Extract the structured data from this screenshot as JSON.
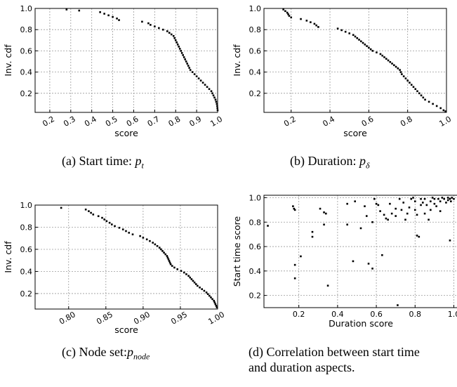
{
  "captions": {
    "a": {
      "prefix": "(a) Start time: ",
      "math": "p",
      "sub": "t"
    },
    "b": {
      "prefix": "(b) Duration: ",
      "math": "p",
      "sub": "δ"
    },
    "c": {
      "prefix": "(c) Node set:",
      "math": "p",
      "sub": "node"
    },
    "d": {
      "line1": "(d) Correlation between start time",
      "line2": "and duration aspects."
    }
  },
  "chart_data": [
    {
      "id": "a",
      "type": "scatter",
      "xlabel": "score",
      "ylabel": "Inv. cdf",
      "xlim": [
        0.13,
        1.0
      ],
      "ylim": [
        0.02,
        1.0
      ],
      "xticks": [
        0.2,
        0.3,
        0.4,
        0.5,
        0.6,
        0.7,
        0.8,
        0.9,
        1.0
      ],
      "xticklabels": [
        "0.2",
        "0.3",
        "0.4",
        "0.5",
        "0.6",
        "0.7",
        "0.8",
        "0.9",
        "1.0"
      ],
      "yticks": [
        0.2,
        0.4,
        0.6,
        0.8,
        1.0
      ],
      "yticklabels": [
        "0.2",
        "0.4",
        "0.6",
        "0.8",
        "1.0"
      ],
      "grid": true,
      "points": [
        [
          0.28,
          0.99
        ],
        [
          0.34,
          0.98
        ],
        [
          0.44,
          0.965
        ],
        [
          0.46,
          0.95
        ],
        [
          0.48,
          0.935
        ],
        [
          0.5,
          0.92
        ],
        [
          0.52,
          0.905
        ],
        [
          0.53,
          0.89
        ],
        [
          0.64,
          0.875
        ],
        [
          0.67,
          0.86
        ],
        [
          0.68,
          0.845
        ],
        [
          0.7,
          0.83
        ],
        [
          0.72,
          0.815
        ],
        [
          0.74,
          0.8
        ],
        [
          0.76,
          0.785
        ],
        [
          0.77,
          0.77
        ],
        [
          0.78,
          0.755
        ],
        [
          0.79,
          0.74
        ],
        [
          0.795,
          0.72
        ],
        [
          0.8,
          0.7
        ],
        [
          0.805,
          0.68
        ],
        [
          0.81,
          0.66
        ],
        [
          0.815,
          0.64
        ],
        [
          0.82,
          0.62
        ],
        [
          0.825,
          0.6
        ],
        [
          0.83,
          0.58
        ],
        [
          0.835,
          0.56
        ],
        [
          0.84,
          0.54
        ],
        [
          0.845,
          0.52
        ],
        [
          0.85,
          0.5
        ],
        [
          0.855,
          0.48
        ],
        [
          0.86,
          0.46
        ],
        [
          0.865,
          0.44
        ],
        [
          0.87,
          0.42
        ],
        [
          0.88,
          0.4
        ],
        [
          0.89,
          0.38
        ],
        [
          0.9,
          0.36
        ],
        [
          0.91,
          0.34
        ],
        [
          0.92,
          0.32
        ],
        [
          0.93,
          0.3
        ],
        [
          0.94,
          0.28
        ],
        [
          0.95,
          0.26
        ],
        [
          0.96,
          0.24
        ],
        [
          0.97,
          0.22
        ],
        [
          0.975,
          0.2
        ],
        [
          0.98,
          0.18
        ],
        [
          0.985,
          0.16
        ],
        [
          0.99,
          0.14
        ],
        [
          0.993,
          0.12
        ],
        [
          0.996,
          0.1
        ],
        [
          0.998,
          0.08
        ],
        [
          0.999,
          0.06
        ],
        [
          1.0,
          0.04
        ]
      ]
    },
    {
      "id": "b",
      "type": "scatter",
      "xlabel": "score",
      "ylabel": "Inv. cdf",
      "xlim": [
        0.06,
        1.0
      ],
      "ylim": [
        0.02,
        1.0
      ],
      "xticks": [
        0.2,
        0.4,
        0.6,
        0.8,
        1.0
      ],
      "xticklabels": [
        "0.2",
        "0.4",
        "0.6",
        "0.8",
        "1.0"
      ],
      "yticks": [
        0.2,
        0.4,
        0.6,
        0.8,
        1.0
      ],
      "yticklabels": [
        "0.2",
        "0.4",
        "0.6",
        "0.8",
        "1.0"
      ],
      "grid": true,
      "points": [
        [
          0.16,
          0.99
        ],
        [
          0.17,
          0.975
        ],
        [
          0.18,
          0.96
        ],
        [
          0.185,
          0.945
        ],
        [
          0.19,
          0.93
        ],
        [
          0.2,
          0.915
        ],
        [
          0.25,
          0.9
        ],
        [
          0.28,
          0.885
        ],
        [
          0.3,
          0.87
        ],
        [
          0.32,
          0.855
        ],
        [
          0.33,
          0.84
        ],
        [
          0.34,
          0.825
        ],
        [
          0.44,
          0.81
        ],
        [
          0.46,
          0.795
        ],
        [
          0.48,
          0.78
        ],
        [
          0.5,
          0.765
        ],
        [
          0.52,
          0.75
        ],
        [
          0.53,
          0.735
        ],
        [
          0.54,
          0.72
        ],
        [
          0.55,
          0.705
        ],
        [
          0.56,
          0.69
        ],
        [
          0.57,
          0.675
        ],
        [
          0.58,
          0.66
        ],
        [
          0.59,
          0.645
        ],
        [
          0.6,
          0.63
        ],
        [
          0.61,
          0.615
        ],
        [
          0.62,
          0.6
        ],
        [
          0.64,
          0.585
        ],
        [
          0.66,
          0.57
        ],
        [
          0.67,
          0.555
        ],
        [
          0.68,
          0.54
        ],
        [
          0.69,
          0.525
        ],
        [
          0.7,
          0.51
        ],
        [
          0.71,
          0.495
        ],
        [
          0.72,
          0.48
        ],
        [
          0.73,
          0.465
        ],
        [
          0.74,
          0.45
        ],
        [
          0.75,
          0.435
        ],
        [
          0.76,
          0.42
        ],
        [
          0.765,
          0.4
        ],
        [
          0.77,
          0.38
        ],
        [
          0.78,
          0.36
        ],
        [
          0.79,
          0.34
        ],
        [
          0.8,
          0.32
        ],
        [
          0.81,
          0.3
        ],
        [
          0.82,
          0.28
        ],
        [
          0.83,
          0.26
        ],
        [
          0.84,
          0.24
        ],
        [
          0.85,
          0.22
        ],
        [
          0.86,
          0.2
        ],
        [
          0.87,
          0.18
        ],
        [
          0.88,
          0.16
        ],
        [
          0.89,
          0.14
        ],
        [
          0.91,
          0.12
        ],
        [
          0.93,
          0.1
        ],
        [
          0.95,
          0.08
        ],
        [
          0.97,
          0.06
        ],
        [
          0.985,
          0.04
        ],
        [
          0.995,
          0.03
        ]
      ]
    },
    {
      "id": "c",
      "type": "scatter",
      "xlabel": "score",
      "ylabel": "Inv. cdf",
      "xlim": [
        0.755,
        1.0
      ],
      "ylim": [
        0.06,
        1.0
      ],
      "xticks": [
        0.8,
        0.85,
        0.9,
        0.95,
        1.0
      ],
      "xticklabels": [
        "0.80",
        "0.85",
        "0.90",
        "0.95",
        "1.00"
      ],
      "yticks": [
        0.2,
        0.4,
        0.6,
        0.8,
        1.0
      ],
      "yticklabels": [
        "0.2",
        "0.4",
        "0.6",
        "0.8",
        "1.0"
      ],
      "grid": true,
      "points": [
        [
          0.79,
          0.975
        ],
        [
          0.823,
          0.96
        ],
        [
          0.827,
          0.945
        ],
        [
          0.83,
          0.93
        ],
        [
          0.833,
          0.915
        ],
        [
          0.84,
          0.9
        ],
        [
          0.845,
          0.885
        ],
        [
          0.848,
          0.87
        ],
        [
          0.851,
          0.855
        ],
        [
          0.855,
          0.84
        ],
        [
          0.858,
          0.825
        ],
        [
          0.862,
          0.81
        ],
        [
          0.868,
          0.795
        ],
        [
          0.873,
          0.78
        ],
        [
          0.877,
          0.765
        ],
        [
          0.881,
          0.75
        ],
        [
          0.886,
          0.735
        ],
        [
          0.896,
          0.72
        ],
        [
          0.9,
          0.705
        ],
        [
          0.905,
          0.69
        ],
        [
          0.909,
          0.675
        ],
        [
          0.913,
          0.66
        ],
        [
          0.916,
          0.645
        ],
        [
          0.919,
          0.63
        ],
        [
          0.922,
          0.615
        ],
        [
          0.924,
          0.6
        ],
        [
          0.926,
          0.585
        ],
        [
          0.928,
          0.57
        ],
        [
          0.93,
          0.555
        ],
        [
          0.932,
          0.54
        ],
        [
          0.933,
          0.525
        ],
        [
          0.934,
          0.51
        ],
        [
          0.935,
          0.495
        ],
        [
          0.936,
          0.48
        ],
        [
          0.937,
          0.465
        ],
        [
          0.939,
          0.45
        ],
        [
          0.942,
          0.435
        ],
        [
          0.946,
          0.42
        ],
        [
          0.951,
          0.405
        ],
        [
          0.955,
          0.39
        ],
        [
          0.958,
          0.375
        ],
        [
          0.961,
          0.36
        ],
        [
          0.963,
          0.345
        ],
        [
          0.965,
          0.33
        ],
        [
          0.967,
          0.315
        ],
        [
          0.969,
          0.3
        ],
        [
          0.971,
          0.285
        ],
        [
          0.973,
          0.27
        ],
        [
          0.976,
          0.255
        ],
        [
          0.979,
          0.24
        ],
        [
          0.982,
          0.225
        ],
        [
          0.985,
          0.21
        ],
        [
          0.987,
          0.195
        ],
        [
          0.989,
          0.18
        ],
        [
          0.991,
          0.165
        ],
        [
          0.993,
          0.15
        ],
        [
          0.995,
          0.135
        ],
        [
          0.996,
          0.12
        ],
        [
          0.997,
          0.105
        ],
        [
          0.998,
          0.09
        ],
        [
          0.999,
          0.075
        ]
      ]
    },
    {
      "id": "d",
      "type": "scatter",
      "xlabel": "Duration score",
      "ylabel": "Start time score",
      "xlim": [
        0.02,
        1.02
      ],
      "ylim": [
        0.1,
        1.02
      ],
      "xticks": [
        0.2,
        0.4,
        0.6,
        0.8,
        1.0
      ],
      "xticklabels": [
        "0.2",
        "0.4",
        "0.6",
        "0.8",
        "1.0"
      ],
      "yticks": [
        0.2,
        0.4,
        0.6,
        0.8,
        1.0
      ],
      "yticklabels": [
        "0.2",
        "0.4",
        "0.6",
        "0.8",
        "1.0"
      ],
      "grid": true,
      "points": [
        [
          0.04,
          0.77
        ],
        [
          0.17,
          0.93
        ],
        [
          0.175,
          0.91
        ],
        [
          0.18,
          0.9
        ],
        [
          0.18,
          0.45
        ],
        [
          0.18,
          0.34
        ],
        [
          0.21,
          0.52
        ],
        [
          0.27,
          0.72
        ],
        [
          0.27,
          0.68
        ],
        [
          0.31,
          0.91
        ],
        [
          0.33,
          0.88
        ],
        [
          0.34,
          0.87
        ],
        [
          0.33,
          0.78
        ],
        [
          0.35,
          0.28
        ],
        [
          0.45,
          0.95
        ],
        [
          0.45,
          0.78
        ],
        [
          0.48,
          0.48
        ],
        [
          0.49,
          0.97
        ],
        [
          0.52,
          0.75
        ],
        [
          0.54,
          0.93
        ],
        [
          0.55,
          0.85
        ],
        [
          0.56,
          0.46
        ],
        [
          0.58,
          0.8
        ],
        [
          0.58,
          0.42
        ],
        [
          0.59,
          0.99
        ],
        [
          0.6,
          0.95
        ],
        [
          0.61,
          0.94
        ],
        [
          0.62,
          0.89
        ],
        [
          0.63,
          0.53
        ],
        [
          0.64,
          0.86
        ],
        [
          0.65,
          0.83
        ],
        [
          0.66,
          0.82
        ],
        [
          0.67,
          0.95
        ],
        [
          0.68,
          0.87
        ],
        [
          0.7,
          0.91
        ],
        [
          0.7,
          0.85
        ],
        [
          0.71,
          0.12
        ],
        [
          0.72,
          0.99
        ],
        [
          0.73,
          0.9
        ],
        [
          0.74,
          0.96
        ],
        [
          0.75,
          0.82
        ],
        [
          0.76,
          0.87
        ],
        [
          0.77,
          0.92
        ],
        [
          0.78,
          0.99
        ],
        [
          0.79,
          1.0
        ],
        [
          0.8,
          0.97
        ],
        [
          0.8,
          0.9
        ],
        [
          0.81,
          0.86
        ],
        [
          0.81,
          0.69
        ],
        [
          0.82,
          0.68
        ],
        [
          0.83,
          0.99
        ],
        [
          0.83,
          0.94
        ],
        [
          0.84,
          0.96
        ],
        [
          0.85,
          0.99
        ],
        [
          0.85,
          0.87
        ],
        [
          0.86,
          0.94
        ],
        [
          0.87,
          0.82
        ],
        [
          0.88,
          0.97
        ],
        [
          0.88,
          0.9
        ],
        [
          0.89,
          1.0
        ],
        [
          0.9,
          0.99
        ],
        [
          0.9,
          0.95
        ],
        [
          0.91,
          0.93
        ],
        [
          0.92,
          0.99
        ],
        [
          0.93,
          0.97
        ],
        [
          0.93,
          0.89
        ],
        [
          0.94,
          1.0
        ],
        [
          0.95,
          0.99
        ],
        [
          0.96,
          0.96
        ],
        [
          0.97,
          1.0
        ],
        [
          0.97,
          0.98
        ],
        [
          0.98,
          0.99
        ],
        [
          0.98,
          0.65
        ],
        [
          0.99,
          1.0
        ],
        [
          0.985,
          0.97
        ],
        [
          1.0,
          0.99
        ]
      ]
    }
  ]
}
